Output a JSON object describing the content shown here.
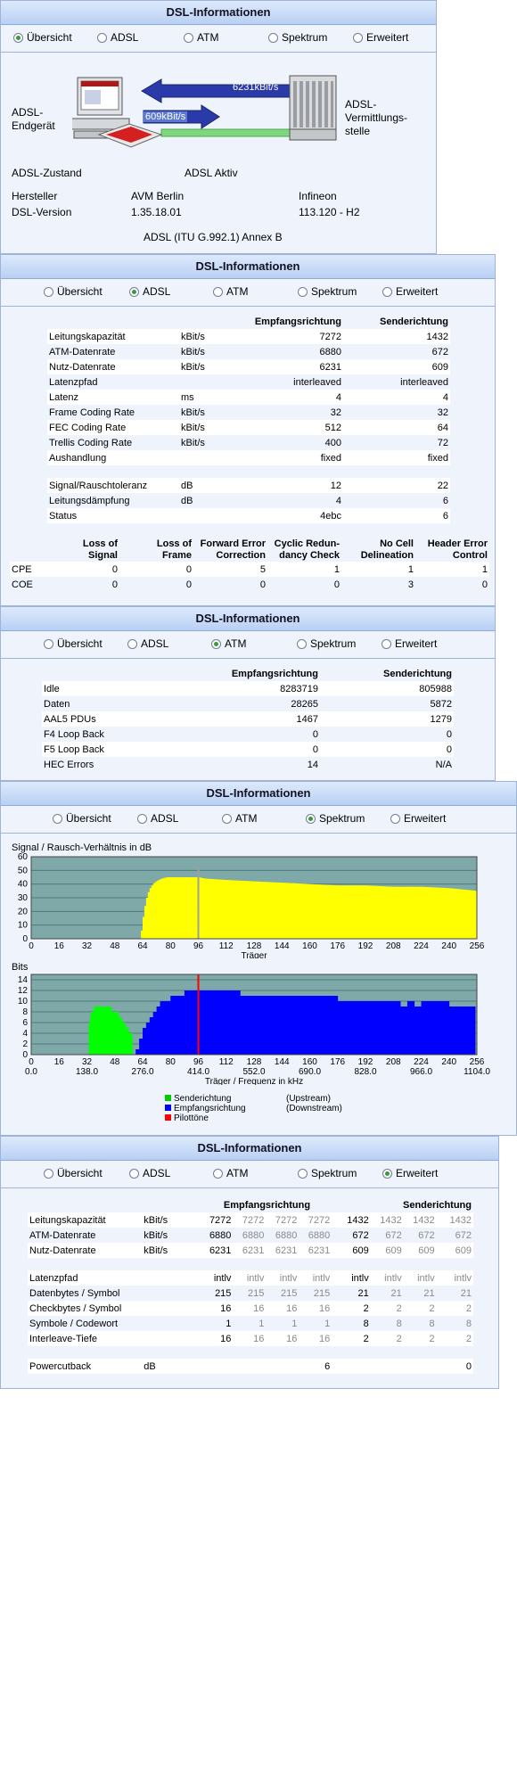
{
  "title": "DSL-Informationen",
  "tabs": [
    "Übersicht",
    "ADSL",
    "ATM",
    "Spektrum",
    "Erweitert"
  ],
  "overview": {
    "left_label_1": "ADSL-",
    "left_label_2": "Endgerät",
    "right_label_1": "ADSL-",
    "right_label_2": "Vermittlungs-",
    "right_label_3": "stelle",
    "down_rate": "6231kBit/s",
    "up_rate": "609kBit/s",
    "state_label": "ADSL-Zustand",
    "state_value": "ADSL Aktiv",
    "rows": [
      {
        "label": "Hersteller",
        "a": "AVM Berlin",
        "b": "Infineon"
      },
      {
        "label": "DSL-Version",
        "a": "1.35.18.01",
        "b": "113.120 - H2"
      }
    ],
    "mode": "ADSL (ITU G.992.1) Annex B"
  },
  "adsl": {
    "col_rx": "Empfangsrichtung",
    "col_tx": "Senderichtung",
    "rows": [
      {
        "label": "Leitungskapazität",
        "unit": "kBit/s",
        "rx": "7272",
        "tx": "1432"
      },
      {
        "label": "ATM-Datenrate",
        "unit": "kBit/s",
        "rx": "6880",
        "tx": "672"
      },
      {
        "label": "Nutz-Datenrate",
        "unit": "kBit/s",
        "rx": "6231",
        "tx": "609"
      },
      {
        "label": "Latenzpfad",
        "unit": "",
        "rx": "interleaved",
        "tx": "interleaved"
      },
      {
        "label": "Latenz",
        "unit": "ms",
        "rx": "4",
        "tx": "4"
      },
      {
        "label": "Frame Coding Rate",
        "unit": "kBit/s",
        "rx": "32",
        "tx": "32"
      },
      {
        "label": "FEC Coding Rate",
        "unit": "kBit/s",
        "rx": "512",
        "tx": "64"
      },
      {
        "label": "Trellis Coding Rate",
        "unit": "kBit/s",
        "rx": "400",
        "tx": "72"
      },
      {
        "label": "Aushandlung",
        "unit": "",
        "rx": "fixed",
        "tx": "fixed"
      }
    ],
    "rows2": [
      {
        "label": "Signal/Rauschtoleranz",
        "unit": "dB",
        "rx": "12",
        "tx": "22"
      },
      {
        "label": "Leitungsdämpfung",
        "unit": "dB",
        "rx": "4",
        "tx": "6"
      },
      {
        "label": "Status",
        "unit": "",
        "rx": "4ebc",
        "tx": "6"
      }
    ],
    "err_headers": [
      [
        "Loss of",
        "Signal"
      ],
      [
        "Loss of",
        "Frame"
      ],
      [
        "Forward Error",
        "Correction"
      ],
      [
        "Cyclic Redun-",
        "dancy Check"
      ],
      [
        "No Cell",
        "Delineation"
      ],
      [
        "Header Error",
        "Control"
      ]
    ],
    "err_rows": [
      {
        "label": "CPE",
        "values": [
          "0",
          "0",
          "5",
          "1",
          "1",
          "1"
        ]
      },
      {
        "label": "COE",
        "values": [
          "0",
          "0",
          "0",
          "0",
          "3",
          "0"
        ]
      }
    ]
  },
  "atm": {
    "col_rx": "Empfangsrichtung",
    "col_tx": "Senderichtung",
    "rows": [
      {
        "label": "Idle",
        "rx": "8283719",
        "tx": "805988"
      },
      {
        "label": "Daten",
        "rx": "28265",
        "tx": "5872"
      },
      {
        "label": "AAL5 PDUs",
        "rx": "1467",
        "tx": "1279"
      },
      {
        "label": "F4 Loop Back",
        "rx": "0",
        "tx": "0"
      },
      {
        "label": "F5 Loop Back",
        "rx": "0",
        "tx": "0"
      },
      {
        "label": "HEC Errors",
        "rx": "14",
        "tx": "N/A"
      }
    ]
  },
  "chart_data": [
    {
      "type": "area",
      "title": "Signal / Rausch-Verhältnis in dB",
      "xlabel": "Träger",
      "ylabel": "",
      "xlim": [
        0,
        256
      ],
      "ylim": [
        0,
        60
      ],
      "x_ticks": [
        0,
        16,
        32,
        48,
        64,
        80,
        96,
        112,
        128,
        144,
        160,
        176,
        192,
        208,
        224,
        240,
        256
      ],
      "y_ticks": [
        0,
        10,
        20,
        30,
        40,
        50,
        60
      ],
      "grid": true,
      "colors": {
        "background": "#7fa9a9",
        "series": "#ffff00",
        "pilot": "#a0a0a0"
      },
      "series": [
        {
          "x": [
            63,
            64,
            66,
            68,
            70,
            72,
            75,
            78,
            82,
            90,
            96,
            100,
            112,
            128,
            144,
            160,
            176,
            192,
            208,
            224,
            240,
            256
          ],
          "values": [
            0,
            12,
            28,
            36,
            40,
            42,
            44,
            45,
            45,
            45,
            45,
            44,
            43,
            42,
            41,
            40,
            39,
            39,
            38,
            38,
            37,
            35
          ]
        }
      ],
      "pilot_x": 96
    },
    {
      "type": "bar",
      "title": "Bits",
      "xlabel": "Träger / Frequenz in kHz",
      "xlim": [
        0,
        256
      ],
      "ylim": [
        0,
        15
      ],
      "x_ticks": [
        0,
        16,
        32,
        48,
        64,
        80,
        96,
        112,
        128,
        144,
        160,
        176,
        192,
        208,
        224,
        240,
        256
      ],
      "x_ticks_khz": [
        "0.0",
        "138.0",
        "276.0",
        "414.0",
        "552.0",
        "690.0",
        "828.0",
        "966.0",
        "1104.0"
      ],
      "y_ticks": [
        0,
        2,
        4,
        6,
        8,
        10,
        12,
        14
      ],
      "grid": true,
      "colors": {
        "background": "#7fa9a9",
        "upstream": "#00ff00",
        "downstream": "#0000ff",
        "pilot": "#ff0000"
      },
      "series": [
        {
          "name": "Senderichtung",
          "x": [
            33,
            34,
            36,
            38,
            40,
            42,
            44,
            46,
            48,
            50,
            52,
            54,
            56,
            58
          ],
          "values": [
            6,
            8,
            9,
            9,
            9,
            9,
            9,
            8,
            8,
            7,
            6,
            5,
            4,
            2
          ]
        },
        {
          "name": "Empfangsrichtung",
          "x": [
            60,
            62,
            64,
            66,
            68,
            70,
            72,
            74,
            76,
            78,
            80,
            84,
            88,
            96,
            112,
            120,
            128,
            144,
            160,
            176,
            192,
            200,
            208,
            212,
            216,
            220,
            224,
            240,
            255
          ],
          "values": [
            1,
            3,
            5,
            6,
            7,
            8,
            9,
            10,
            10,
            10,
            11,
            11,
            12,
            12,
            12,
            11,
            11,
            11,
            11,
            10,
            10,
            10,
            10,
            9,
            10,
            9,
            10,
            9,
            9
          ]
        }
      ],
      "pilot_x": 96
    }
  ],
  "spektrum": {
    "snr_title": "Signal / Rausch-Verhältnis in dB",
    "snr_xlabel": "Träger",
    "bits_title": "Bits",
    "bits_xlabel": "Träger / Frequenz in kHz",
    "legend": [
      {
        "name": "Senderichtung",
        "note": "(Upstream)",
        "color": "#00cc00"
      },
      {
        "name": "Empfangsrichtung",
        "note": "(Downstream)",
        "color": "#0000ff"
      },
      {
        "name": "Pilottöne",
        "note": "",
        "color": "#ff0000"
      }
    ]
  },
  "erweitert": {
    "col_rx": "Empfangsrichtung",
    "col_tx": "Senderichtung",
    "rows": [
      {
        "label": "Leitungskapazität",
        "unit": "kBit/s",
        "rx": [
          "7272",
          "7272",
          "7272",
          "7272"
        ],
        "tx": [
          "1432",
          "1432",
          "1432",
          "1432"
        ]
      },
      {
        "label": "ATM-Datenrate",
        "unit": "kBit/s",
        "rx": [
          "6880",
          "6880",
          "6880",
          "6880"
        ],
        "tx": [
          "672",
          "672",
          "672",
          "672"
        ]
      },
      {
        "label": "Nutz-Datenrate",
        "unit": "kBit/s",
        "rx": [
          "6231",
          "6231",
          "6231",
          "6231"
        ],
        "tx": [
          "609",
          "609",
          "609",
          "609"
        ]
      }
    ],
    "rows2": [
      {
        "label": "Latenzpfad",
        "unit": "",
        "rx": [
          "intlv",
          "intlv",
          "intlv",
          "intlv"
        ],
        "tx": [
          "intlv",
          "intlv",
          "intlv",
          "intlv"
        ]
      },
      {
        "label": "Datenbytes / Symbol",
        "unit": "",
        "rx": [
          "215",
          "215",
          "215",
          "215"
        ],
        "tx": [
          "21",
          "21",
          "21",
          "21"
        ]
      },
      {
        "label": "Checkbytes / Symbol",
        "unit": "",
        "rx": [
          "16",
          "16",
          "16",
          "16"
        ],
        "tx": [
          "2",
          "2",
          "2",
          "2"
        ]
      },
      {
        "label": "Symbole / Codewort",
        "unit": "",
        "rx": [
          "1",
          "1",
          "1",
          "1"
        ],
        "tx": [
          "8",
          "8",
          "8",
          "8"
        ]
      },
      {
        "label": "Interleave-Tiefe",
        "unit": "",
        "rx": [
          "16",
          "16",
          "16",
          "16"
        ],
        "tx": [
          "2",
          "2",
          "2",
          "2"
        ]
      }
    ],
    "powercutback": {
      "label": "Powercutback",
      "unit": "dB",
      "rx": "6",
      "tx": "0"
    }
  }
}
